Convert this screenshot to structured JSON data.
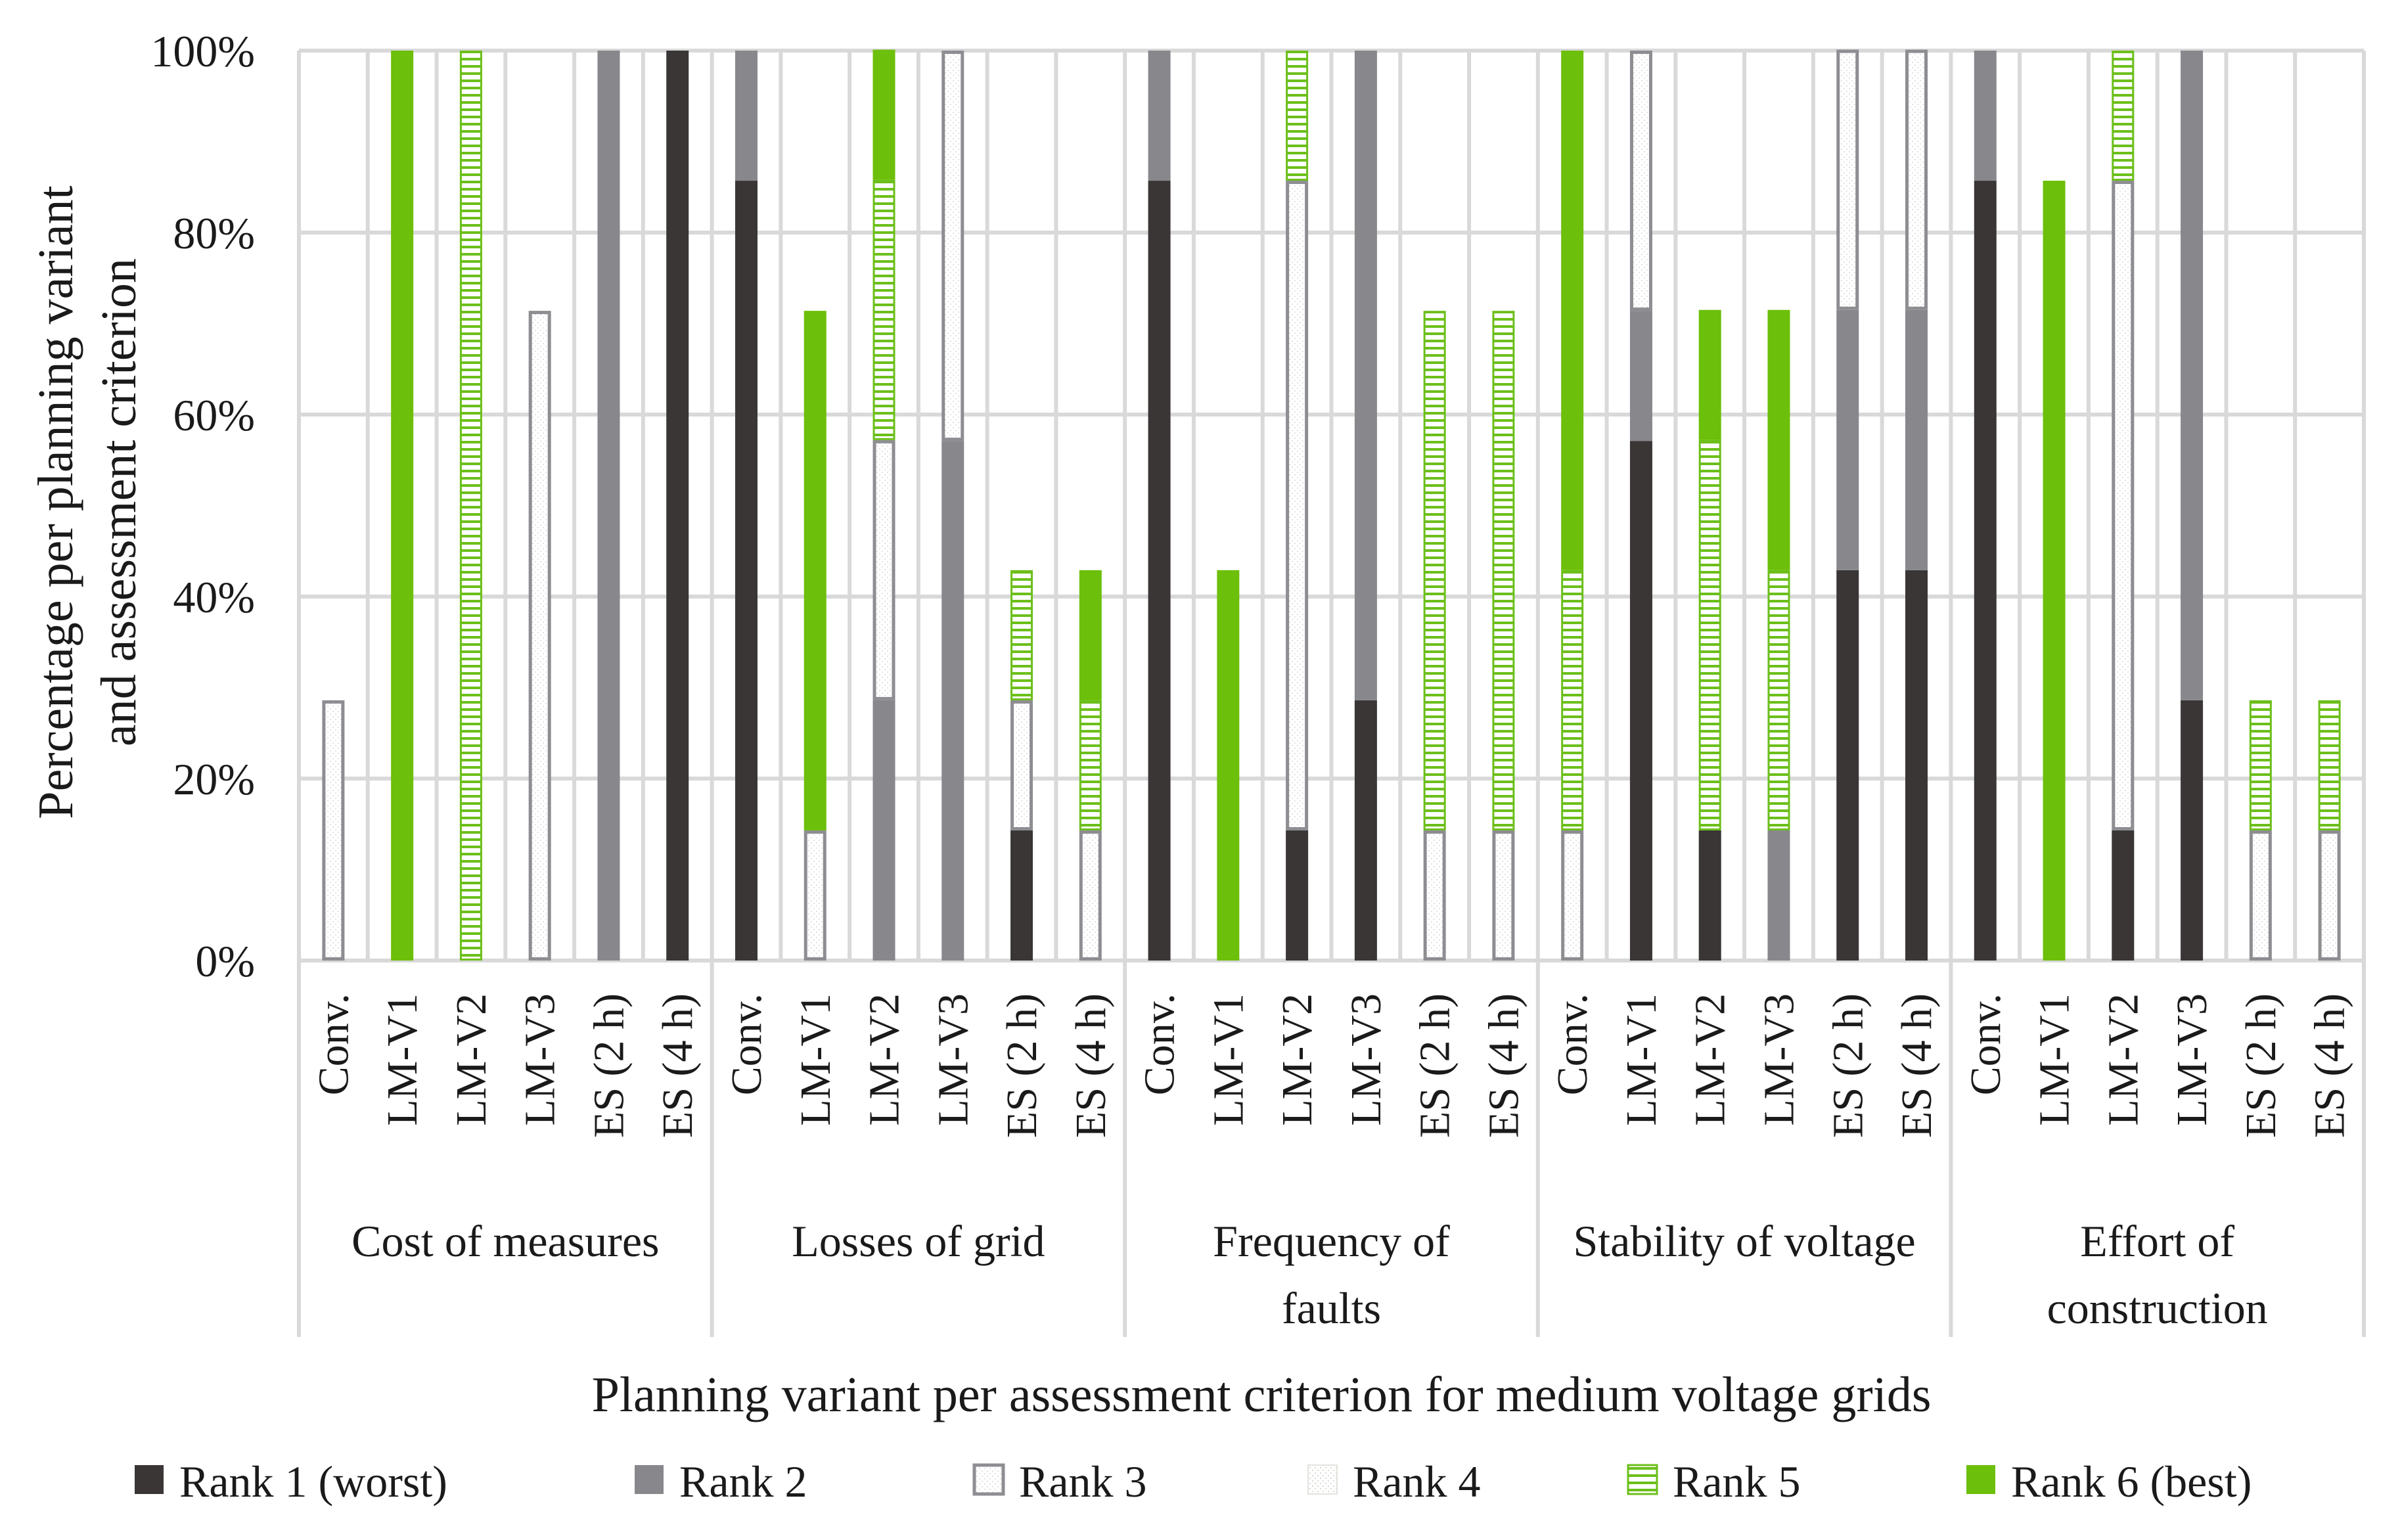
{
  "chart_data": {
    "type": "bar",
    "stacked": true,
    "title": "",
    "ylabel": [
      "Percentage per planning variant",
      "and assessment criterion"
    ],
    "xlabel": "Planning variant per assessment criterion for medium voltage grids",
    "ylim": [
      0,
      100
    ],
    "yticks": [
      "0%",
      "20%",
      "40%",
      "60%",
      "80%",
      "100%"
    ],
    "grid": true,
    "legend_position": "bottom",
    "groups": [
      {
        "label": [
          "Cost of measures"
        ],
        "variants": [
          "Conv.",
          "LM-V1",
          "LM-V2",
          "LM-V3",
          "ES (2 h)",
          "ES (4 h)"
        ]
      },
      {
        "label": [
          "Losses of grid"
        ],
        "variants": [
          "Conv.",
          "LM-V1",
          "LM-V2",
          "LM-V3",
          "ES (2 h)",
          "ES (4 h)"
        ]
      },
      {
        "label": [
          "Frequency of",
          "faults"
        ],
        "variants": [
          "Conv.",
          "LM-V1",
          "LM-V2",
          "LM-V3",
          "ES (2 h)",
          "ES (4 h)"
        ]
      },
      {
        "label": [
          "Stability of voltage"
        ],
        "variants": [
          "Conv.",
          "LM-V1",
          "LM-V2",
          "LM-V3",
          "ES (2 h)",
          "ES (4 h)"
        ]
      },
      {
        "label": [
          "Effort of",
          "construction"
        ],
        "variants": [
          "Conv.",
          "LM-V1",
          "LM-V2",
          "LM-V3",
          "ES (2 h)",
          "ES (4 h)"
        ]
      }
    ],
    "series": [
      {
        "name": "Rank 1 (worst)",
        "style": "solid",
        "color": "#3a3636",
        "values": [
          0,
          0,
          0,
          0,
          0,
          100,
          85.7,
          0,
          0,
          0,
          14.3,
          0,
          85.7,
          0,
          14.3,
          28.6,
          0,
          0,
          0,
          57.1,
          14.3,
          0,
          42.9,
          42.9,
          85.7,
          0,
          14.3,
          28.6,
          0,
          0
        ]
      },
      {
        "name": "Rank 2",
        "style": "solid",
        "color": "#87878c",
        "values": [
          0,
          0,
          0,
          0,
          100,
          0,
          14.3,
          0,
          28.6,
          57.1,
          0,
          0,
          14.3,
          0,
          0,
          71.4,
          0,
          0,
          0,
          14.3,
          0,
          14.3,
          28.6,
          28.6,
          14.3,
          0,
          0,
          71.4,
          0,
          0
        ]
      },
      {
        "name": "Rank 3",
        "style": "outline",
        "color": "#8d8d92",
        "values": [
          28.6,
          0,
          0,
          71.4,
          0,
          0,
          0,
          14.3,
          28.6,
          42.9,
          14.3,
          14.3,
          0,
          0,
          71.4,
          0,
          14.3,
          14.3,
          14.3,
          28.6,
          0,
          0,
          28.6,
          28.6,
          0,
          0,
          71.4,
          0,
          14.3,
          14.3
        ]
      },
      {
        "name": "Rank 4",
        "style": "dotted",
        "color": "#d4d4cf",
        "values": [
          0,
          0,
          0,
          0,
          0,
          0,
          0,
          0,
          0,
          0,
          0,
          0,
          0,
          0,
          0,
          0,
          0,
          0,
          0,
          0,
          0,
          0,
          0,
          0,
          0,
          0,
          0,
          0,
          0,
          0
        ]
      },
      {
        "name": "Rank 5",
        "style": "striped",
        "color": "#6cbf1a",
        "values": [
          0,
          0,
          100,
          0,
          0,
          0,
          0,
          0,
          28.6,
          0,
          14.3,
          14.3,
          0,
          0,
          14.3,
          0,
          57.1,
          57.1,
          28.6,
          0,
          42.9,
          28.6,
          0,
          0,
          0,
          0,
          14.3,
          0,
          14.3,
          14.3
        ]
      },
      {
        "name": "Rank 6 (best)",
        "style": "solid",
        "color": "#6cbf0a",
        "values": [
          0,
          100,
          0,
          0,
          0,
          0,
          0,
          57.1,
          14.3,
          0,
          0,
          14.3,
          0,
          42.9,
          0,
          0,
          0,
          0,
          57.1,
          0,
          14.3,
          28.6,
          0,
          0,
          0,
          85.7,
          0,
          0,
          0,
          0
        ]
      }
    ]
  }
}
